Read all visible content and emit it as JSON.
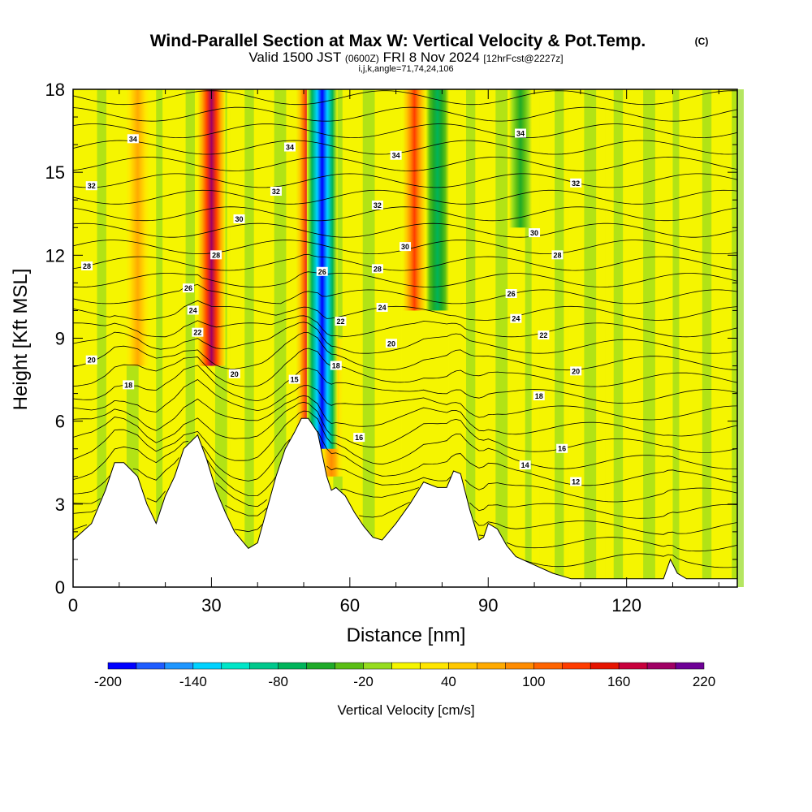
{
  "title": {
    "main": "Wind-Parallel Section at Max W: Vertical Velocity & Pot.Temp.",
    "copyright": "(C)",
    "valid_prefix": "Valid 1500 JST",
    "valid_utc": "(0600Z)",
    "valid_date": "FRI 8 Nov 2024",
    "forecast": "[12hrFcst@2227z]",
    "indices": "i,j,k,angle=71,74,24,106"
  },
  "chart_data": {
    "type": "heatmap",
    "xlabel": "Distance [nm]",
    "ylabel": "Height [Kft MSL]",
    "xlim": [
      0,
      144
    ],
    "ylim": [
      0,
      18
    ],
    "xticks": [
      0,
      30,
      60,
      90,
      120
    ],
    "yticks": [
      0,
      3,
      6,
      9,
      12,
      15,
      18
    ],
    "colorbar": {
      "label": "Vertical Velocity [cm/s]",
      "tick_labels": [
        "-200",
        "-140",
        "-80",
        "-20",
        "40",
        "100",
        "160",
        "220"
      ],
      "levels": [
        -200,
        -180,
        -160,
        -140,
        -120,
        -100,
        -80,
        -60,
        -40,
        -20,
        0,
        20,
        40,
        60,
        80,
        100,
        120,
        140,
        160,
        180,
        200,
        220
      ],
      "colors": [
        "#0000ff",
        "#1e5cff",
        "#1e96ff",
        "#00d2ff",
        "#00e6c8",
        "#00c88c",
        "#00b45a",
        "#1eaa28",
        "#5abe14",
        "#96dc1e",
        "#f5f500",
        "#ffe600",
        "#ffc800",
        "#ffaa00",
        "#ff8c00",
        "#ff6400",
        "#ff3c00",
        "#e61400",
        "#c8003c",
        "#a00064",
        "#6e0096"
      ]
    },
    "updraft_columns": [
      {
        "x": 30,
        "bottom": 8,
        "top": 18,
        "peak": 180
      },
      {
        "x": 51,
        "bottom": 5,
        "top": 18,
        "peak": 160
      },
      {
        "x": 74,
        "bottom": 10,
        "top": 18,
        "peak": 120
      },
      {
        "x": 14,
        "bottom": 8,
        "top": 18,
        "peak": 60
      },
      {
        "x": 56,
        "bottom": 4,
        "top": 9,
        "peak": 90
      }
    ],
    "downdraft_columns": [
      {
        "x": 54,
        "bottom": 5,
        "top": 18,
        "peak": -200
      },
      {
        "x": 79,
        "bottom": 10,
        "top": 18,
        "peak": -80
      },
      {
        "x": 97,
        "bottom": 13,
        "top": 18,
        "peak": -50
      }
    ],
    "terrain": {
      "x": [
        0,
        4,
        7,
        9,
        11,
        14,
        16,
        18,
        20,
        22,
        24,
        27,
        29,
        31,
        33,
        35,
        38,
        40,
        42,
        44,
        46,
        48,
        49.5,
        51,
        53,
        55,
        56,
        57,
        59,
        61,
        63,
        65,
        67,
        70,
        73,
        76,
        79,
        81,
        82.5,
        84,
        86,
        88,
        89,
        90,
        92,
        94,
        96,
        100,
        104,
        108,
        112,
        116,
        120,
        124,
        126,
        128,
        129.5,
        131,
        133,
        136,
        140,
        144
      ],
      "height_kft": [
        1.7,
        2.3,
        3.5,
        4.5,
        4.5,
        4.0,
        3.0,
        2.3,
        3.3,
        4.0,
        5.0,
        5.5,
        4.6,
        3.5,
        2.7,
        2.0,
        1.4,
        1.6,
        2.8,
        4.0,
        5.0,
        5.6,
        6.1,
        6.1,
        5.6,
        4.0,
        3.5,
        3.6,
        3.3,
        2.7,
        2.2,
        1.8,
        1.7,
        2.3,
        3.0,
        3.8,
        3.6,
        3.6,
        4.2,
        4.1,
        2.8,
        1.7,
        1.8,
        2.3,
        2.1,
        1.5,
        1.1,
        0.8,
        0.5,
        0.3,
        0.3,
        0.3,
        0.3,
        0.3,
        0.3,
        0.3,
        1.0,
        0.5,
        0.3,
        0.3,
        0.3,
        0.3
      ]
    },
    "theta_contours": {
      "levels": [
        12,
        14,
        15,
        16,
        18,
        20,
        22,
        24,
        26,
        28,
        30,
        32,
        34
      ],
      "labels": [
        {
          "text": "34",
          "x": 13,
          "y": 16.2
        },
        {
          "text": "32",
          "x": 4,
          "y": 14.5
        },
        {
          "text": "28",
          "x": 3,
          "y": 11.6
        },
        {
          "text": "20",
          "x": 4,
          "y": 8.2
        },
        {
          "text": "18",
          "x": 12,
          "y": 7.3
        },
        {
          "text": "26",
          "x": 25,
          "y": 10.8
        },
        {
          "text": "24",
          "x": 26,
          "y": 10.0
        },
        {
          "text": "22",
          "x": 27,
          "y": 9.2
        },
        {
          "text": "28",
          "x": 31,
          "y": 12.0
        },
        {
          "text": "30",
          "x": 36,
          "y": 13.3
        },
        {
          "text": "20",
          "x": 35,
          "y": 7.7
        },
        {
          "text": "34",
          "x": 47,
          "y": 15.9
        },
        {
          "text": "32",
          "x": 44,
          "y": 14.3
        },
        {
          "text": "15",
          "x": 48,
          "y": 7.5
        },
        {
          "text": "26",
          "x": 54,
          "y": 11.4
        },
        {
          "text": "22",
          "x": 58,
          "y": 9.6
        },
        {
          "text": "18",
          "x": 57,
          "y": 8.0
        },
        {
          "text": "16",
          "x": 62,
          "y": 5.4
        },
        {
          "text": "34",
          "x": 70,
          "y": 15.6
        },
        {
          "text": "32",
          "x": 66,
          "y": 13.8
        },
        {
          "text": "30",
          "x": 72,
          "y": 12.3
        },
        {
          "text": "28",
          "x": 66,
          "y": 11.5
        },
        {
          "text": "24",
          "x": 67,
          "y": 10.1
        },
        {
          "text": "20",
          "x": 69,
          "y": 8.8
        },
        {
          "text": "34",
          "x": 97,
          "y": 16.4
        },
        {
          "text": "32",
          "x": 109,
          "y": 14.6
        },
        {
          "text": "30",
          "x": 100,
          "y": 12.8
        },
        {
          "text": "28",
          "x": 105,
          "y": 12.0
        },
        {
          "text": "26",
          "x": 95,
          "y": 10.6
        },
        {
          "text": "24",
          "x": 96,
          "y": 9.7
        },
        {
          "text": "22",
          "x": 102,
          "y": 9.1
        },
        {
          "text": "20",
          "x": 109,
          "y": 7.8
        },
        {
          "text": "18",
          "x": 101,
          "y": 6.9
        },
        {
          "text": "16",
          "x": 106,
          "y": 5.0
        },
        {
          "text": "14",
          "x": 98,
          "y": 4.4
        },
        {
          "text": "12",
          "x": 109,
          "y": 3.8
        }
      ]
    }
  }
}
